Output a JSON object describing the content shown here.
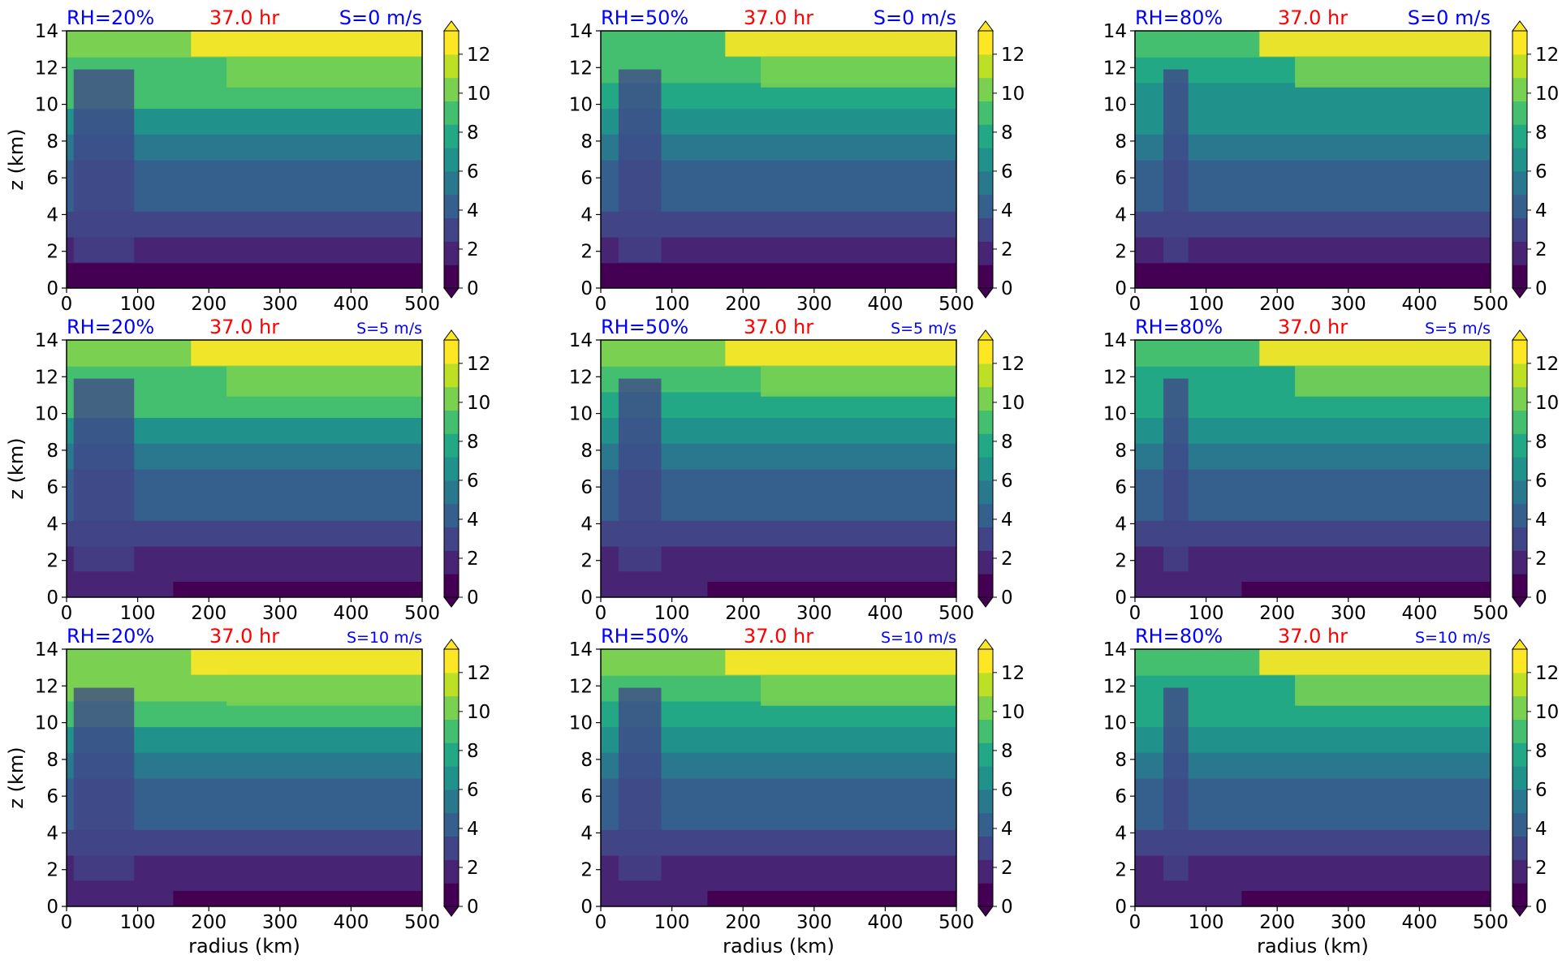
{
  "figure": {
    "colormap": "viridis",
    "colors": {
      "rh_title": "#0000ff",
      "time_title": "#ff0000",
      "shear_title": "#0000ff",
      "levels": [
        "#440154",
        "#482475",
        "#414487",
        "#355f8d",
        "#2a788e",
        "#21918c",
        "#22a884",
        "#44bf70",
        "#7ad151",
        "#bddf26",
        "#fde725"
      ]
    },
    "x_axis_label": "radius (km)",
    "y_axis_label": "z (km)",
    "x_ticks": [
      "0",
      "100",
      "200",
      "300",
      "400",
      "500"
    ],
    "y_ticks": [
      "0",
      "2",
      "4",
      "6",
      "8",
      "10",
      "12",
      "14"
    ],
    "colorbar_ticks": [
      "0",
      "2",
      "4",
      "6",
      "8",
      "10",
      "12"
    ]
  },
  "chart_data": [
    {
      "type": "heatmap",
      "rh_title": "RH=20%",
      "time_title": "37.0 hr",
      "shear_title": "S=0 m/s",
      "xlabel": "",
      "ylabel": "z (km)",
      "xlim": [
        0,
        500
      ],
      "ylim": [
        0,
        14
      ],
      "colorbar": {
        "min": 0,
        "max": 13.2,
        "extend": "both"
      }
    },
    {
      "type": "heatmap",
      "rh_title": "RH=50%",
      "time_title": "37.0 hr",
      "shear_title": "S=0 m/s",
      "xlabel": "",
      "ylabel": "",
      "xlim": [
        0,
        500
      ],
      "ylim": [
        0,
        14
      ],
      "colorbar": {
        "min": 0,
        "max": 13.2,
        "extend": "both"
      }
    },
    {
      "type": "heatmap",
      "rh_title": "RH=80%",
      "time_title": "37.0 hr",
      "shear_title": "S=0 m/s",
      "xlabel": "",
      "ylabel": "",
      "xlim": [
        0,
        500
      ],
      "ylim": [
        0,
        14
      ],
      "colorbar": {
        "min": 0,
        "max": 13.2,
        "extend": "both"
      }
    },
    {
      "type": "heatmap",
      "rh_title": "RH=20%",
      "time_title": "37.0 hr",
      "shear_title": "S=5 m/s",
      "xlabel": "",
      "ylabel": "z (km)",
      "xlim": [
        0,
        500
      ],
      "ylim": [
        0,
        14
      ],
      "colorbar": {
        "min": 0,
        "max": 13.2,
        "extend": "both"
      }
    },
    {
      "type": "heatmap",
      "rh_title": "RH=50%",
      "time_title": "37.0 hr",
      "shear_title": "S=5 m/s",
      "xlabel": "",
      "ylabel": "",
      "xlim": [
        0,
        500
      ],
      "ylim": [
        0,
        14
      ],
      "colorbar": {
        "min": 0,
        "max": 13.2,
        "extend": "both"
      }
    },
    {
      "type": "heatmap",
      "rh_title": "RH=80%",
      "time_title": "37.0 hr",
      "shear_title": "S=5 m/s",
      "xlabel": "",
      "ylabel": "",
      "xlim": [
        0,
        500
      ],
      "ylim": [
        0,
        14
      ],
      "colorbar": {
        "min": 0,
        "max": 13.2,
        "extend": "both"
      }
    },
    {
      "type": "heatmap",
      "rh_title": "RH=20%",
      "time_title": "37.0 hr",
      "shear_title": "S=10 m/s",
      "xlabel": "radius (km)",
      "ylabel": "z (km)",
      "xlim": [
        0,
        500
      ],
      "ylim": [
        0,
        14
      ],
      "colorbar": {
        "min": 0,
        "max": 13.2,
        "extend": "both"
      }
    },
    {
      "type": "heatmap",
      "rh_title": "RH=50%",
      "time_title": "37.0 hr",
      "shear_title": "S=10 m/s",
      "xlabel": "radius (km)",
      "ylabel": "",
      "xlim": [
        0,
        500
      ],
      "ylim": [
        0,
        14
      ],
      "colorbar": {
        "min": 0,
        "max": 13.2,
        "extend": "both"
      }
    },
    {
      "type": "heatmap",
      "rh_title": "RH=80%",
      "time_title": "37.0 hr",
      "shear_title": "S=10 m/s",
      "xlabel": "radius (km)",
      "ylabel": "",
      "xlim": [
        0,
        500
      ],
      "ylim": [
        0,
        14
      ],
      "colorbar": {
        "min": 0,
        "max": 13.2,
        "extend": "both"
      }
    }
  ]
}
